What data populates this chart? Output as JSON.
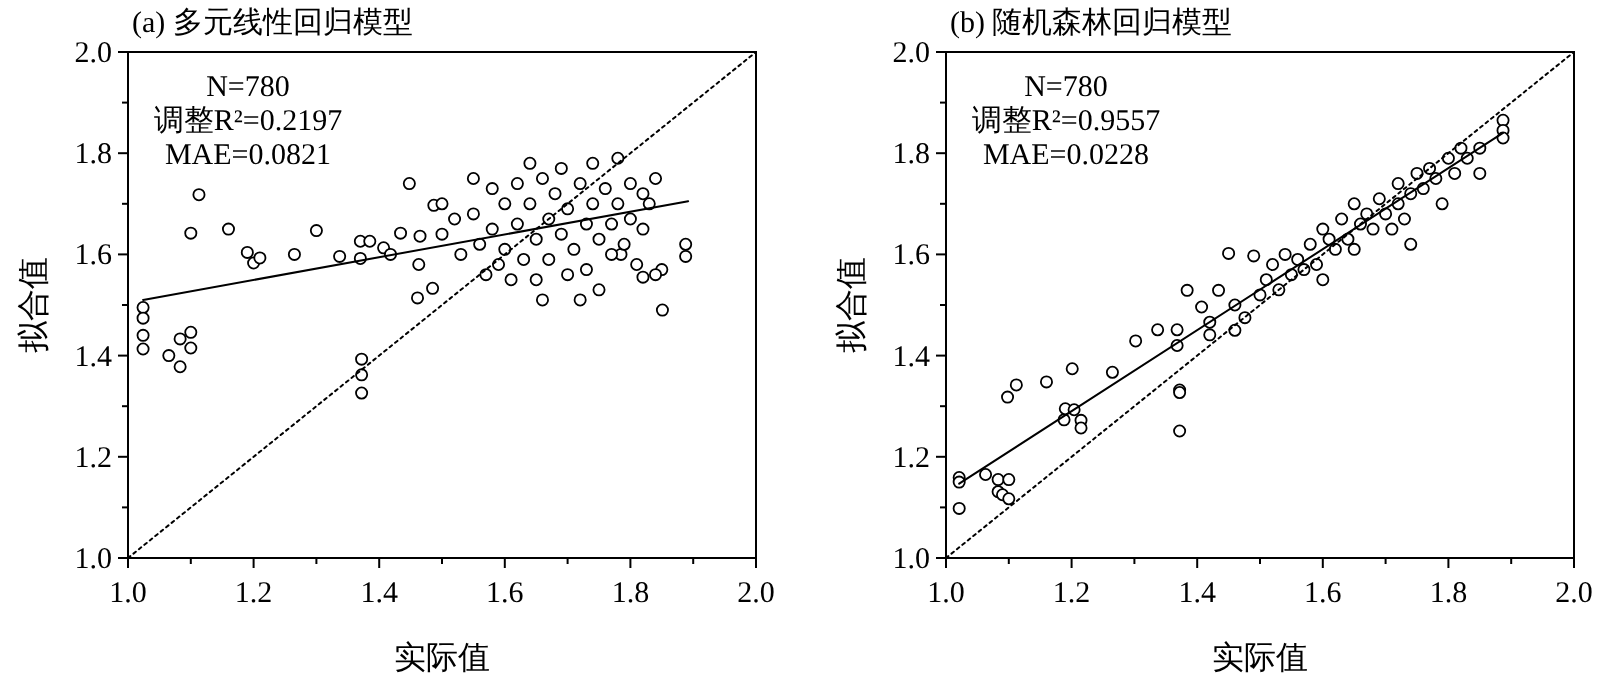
{
  "chart_data": [
    {
      "type": "scatter",
      "title": "(a) 多元线性回归模型",
      "xlabel": "实际值",
      "ylabel": "拟合值",
      "xlim": [
        1,
        2
      ],
      "ylim": [
        1,
        2
      ],
      "xticks": [
        {
          "value": 1,
          "label": "1.0"
        },
        {
          "value": 1.1,
          "label": null
        },
        {
          "value": 1.2,
          "label": "1.2"
        },
        {
          "value": 1.3,
          "label": null
        },
        {
          "value": 1.4,
          "label": "1.4"
        },
        {
          "value": 1.5,
          "label": null
        },
        {
          "value": 1.6,
          "label": "1.6"
        },
        {
          "value": 1.7,
          "label": null
        },
        {
          "value": 1.8,
          "label": "1.8"
        },
        {
          "value": 1.9,
          "label": null
        },
        {
          "value": 2,
          "label": "2.0"
        }
      ],
      "yticks": [
        {
          "value": 1,
          "label": "1.0"
        },
        {
          "value": 1.1,
          "label": null
        },
        {
          "value": 1.2,
          "label": "1.2"
        },
        {
          "value": 1.3,
          "label": null
        },
        {
          "value": 1.4,
          "label": "1.4"
        },
        {
          "value": 1.5,
          "label": null
        },
        {
          "value": 1.6,
          "label": "1.6"
        },
        {
          "value": 1.7,
          "label": null
        },
        {
          "value": 1.8,
          "label": "1.8"
        },
        {
          "value": 1.9,
          "label": null
        },
        {
          "value": 2,
          "label": "2.0"
        }
      ],
      "marker": "circle",
      "annotations": [
        "N=780",
        "调整R²=0.2197",
        "MAE=0.0821"
      ],
      "series": [
        {
          "color": "#000000",
          "x": [
            1.024,
            1.024,
            1.024,
            1.024,
            1.065,
            1.083,
            1.083,
            1.1,
            1.1,
            1.1,
            1.113,
            1.16,
            1.19,
            1.2,
            1.21,
            1.265,
            1.3,
            1.337,
            1.37,
            1.37,
            1.372,
            1.372,
            1.372,
            1.385,
            1.407,
            1.418,
            1.434,
            1.448,
            1.461,
            1.465,
            1.463,
            1.485,
            1.487,
            1.888,
            1.888,
            1.851,
            1.82,
            1.785,
            1.5,
            1.5,
            1.52,
            1.53,
            1.55,
            1.55,
            1.56,
            1.57,
            1.58,
            1.58,
            1.59,
            1.6,
            1.6,
            1.61,
            1.62,
            1.62,
            1.63,
            1.64,
            1.64,
            1.65,
            1.65,
            1.66,
            1.66,
            1.67,
            1.67,
            1.68,
            1.69,
            1.69,
            1.7,
            1.7,
            1.71,
            1.72,
            1.72,
            1.73,
            1.73,
            1.74,
            1.74,
            1.75,
            1.75,
            1.76,
            1.77,
            1.77,
            1.78,
            1.78,
            1.79,
            1.8,
            1.8,
            1.81,
            1.82,
            1.82,
            1.83,
            1.84,
            1.85,
            1.84
          ],
          "values": [
            1.495,
            1.474,
            1.44,
            1.413,
            1.4,
            1.433,
            1.378,
            1.446,
            1.415,
            1.642,
            1.718,
            1.65,
            1.604,
            1.583,
            1.593,
            1.6,
            1.647,
            1.596,
            1.626,
            1.592,
            1.393,
            1.362,
            1.326,
            1.626,
            1.613,
            1.6,
            1.642,
            1.74,
            1.514,
            1.636,
            1.58,
            1.533,
            1.697,
            1.62,
            1.596,
            1.49,
            1.555,
            1.6,
            1.7,
            1.64,
            1.67,
            1.6,
            1.75,
            1.68,
            1.62,
            1.56,
            1.73,
            1.65,
            1.58,
            1.7,
            1.61,
            1.55,
            1.74,
            1.66,
            1.59,
            1.78,
            1.7,
            1.63,
            1.55,
            1.51,
            1.75,
            1.67,
            1.59,
            1.72,
            1.64,
            1.77,
            1.56,
            1.69,
            1.61,
            1.51,
            1.74,
            1.66,
            1.57,
            1.78,
            1.7,
            1.63,
            1.53,
            1.73,
            1.66,
            1.6,
            1.79,
            1.7,
            1.62,
            1.74,
            1.67,
            1.58,
            1.72,
            1.65,
            1.7,
            1.75,
            1.57,
            1.56
          ]
        },
        {
          "type": "line",
          "color": "#000000",
          "marker": "none",
          "line_style": "solid",
          "x": [
            1.024,
            1.892
          ],
          "values": [
            1.51,
            1.705
          ]
        },
        {
          "type": "line",
          "color": "#000000",
          "marker": "none",
          "line_style": "dotted",
          "x": [
            1,
            2
          ],
          "values": [
            1,
            2
          ]
        }
      ]
    },
    {
      "type": "scatter",
      "title": "(b) 随机森林回归模型",
      "xlabel": "实际值",
      "ylabel": "拟合值",
      "xlim": [
        1,
        2
      ],
      "ylim": [
        1,
        2
      ],
      "xticks": [
        {
          "value": 1,
          "label": "1.0"
        },
        {
          "value": 1.1,
          "label": null
        },
        {
          "value": 1.2,
          "label": "1.2"
        },
        {
          "value": 1.3,
          "label": null
        },
        {
          "value": 1.4,
          "label": "1.4"
        },
        {
          "value": 1.5,
          "label": null
        },
        {
          "value": 1.6,
          "label": "1.6"
        },
        {
          "value": 1.7,
          "label": null
        },
        {
          "value": 1.8,
          "label": "1.8"
        },
        {
          "value": 1.9,
          "label": null
        },
        {
          "value": 2,
          "label": "2.0"
        }
      ],
      "yticks": [
        {
          "value": 1,
          "label": "1.0"
        },
        {
          "value": 1.1,
          "label": null
        },
        {
          "value": 1.2,
          "label": "1.2"
        },
        {
          "value": 1.3,
          "label": null
        },
        {
          "value": 1.4,
          "label": "1.4"
        },
        {
          "value": 1.5,
          "label": null
        },
        {
          "value": 1.6,
          "label": "1.6"
        },
        {
          "value": 1.7,
          "label": null
        },
        {
          "value": 1.8,
          "label": "1.8"
        },
        {
          "value": 1.9,
          "label": null
        },
        {
          "value": 2,
          "label": "2.0"
        }
      ],
      "marker": "circle",
      "annotations": [
        "N=780",
        "调整R²=0.9557",
        "MAE=0.0228"
      ],
      "series": [
        {
          "color": "#000000",
          "x": [
            1.021,
            1.021,
            1.021,
            1.063,
            1.083,
            1.083,
            1.09,
            1.1,
            1.1,
            1.098,
            1.112,
            1.16,
            1.188,
            1.19,
            1.201,
            1.204,
            1.215,
            1.215,
            1.265,
            1.302,
            1.337,
            1.368,
            1.368,
            1.372,
            1.372,
            1.372,
            1.384,
            1.407,
            1.42,
            1.42,
            1.434,
            1.45,
            1.46,
            1.46,
            1.476,
            1.49,
            1.5,
            1.51,
            1.52,
            1.53,
            1.54,
            1.55,
            1.56,
            1.57,
            1.58,
            1.59,
            1.6,
            1.6,
            1.61,
            1.62,
            1.63,
            1.64,
            1.65,
            1.65,
            1.66,
            1.67,
            1.68,
            1.69,
            1.7,
            1.71,
            1.72,
            1.72,
            1.73,
            1.74,
            1.74,
            1.75,
            1.76,
            1.77,
            1.78,
            1.79,
            1.8,
            1.81,
            1.82,
            1.83,
            1.85,
            1.85,
            1.887,
            1.887,
            1.887
          ],
          "values": [
            1.159,
            1.15,
            1.098,
            1.165,
            1.155,
            1.131,
            1.125,
            1.155,
            1.117,
            1.318,
            1.342,
            1.348,
            1.273,
            1.295,
            1.374,
            1.293,
            1.272,
            1.257,
            1.367,
            1.429,
            1.451,
            1.451,
            1.42,
            1.332,
            1.327,
            1.251,
            1.529,
            1.496,
            1.466,
            1.441,
            1.529,
            1.602,
            1.45,
            1.5,
            1.475,
            1.597,
            1.52,
            1.55,
            1.58,
            1.53,
            1.6,
            1.56,
            1.59,
            1.57,
            1.62,
            1.58,
            1.55,
            1.65,
            1.63,
            1.61,
            1.67,
            1.63,
            1.7,
            1.61,
            1.66,
            1.68,
            1.65,
            1.71,
            1.68,
            1.65,
            1.74,
            1.7,
            1.67,
            1.62,
            1.72,
            1.76,
            1.73,
            1.77,
            1.75,
            1.7,
            1.79,
            1.76,
            1.81,
            1.79,
            1.76,
            1.81,
            1.865,
            1.845,
            1.83
          ]
        },
        {
          "type": "line",
          "color": "#000000",
          "marker": "none",
          "line_style": "solid",
          "x": [
            1.021,
            1.887
          ],
          "values": [
            1.147,
            1.84
          ]
        },
        {
          "type": "line",
          "color": "#000000",
          "marker": "none",
          "line_style": "dotted",
          "x": [
            1,
            2
          ],
          "values": [
            1,
            2
          ]
        }
      ]
    }
  ]
}
